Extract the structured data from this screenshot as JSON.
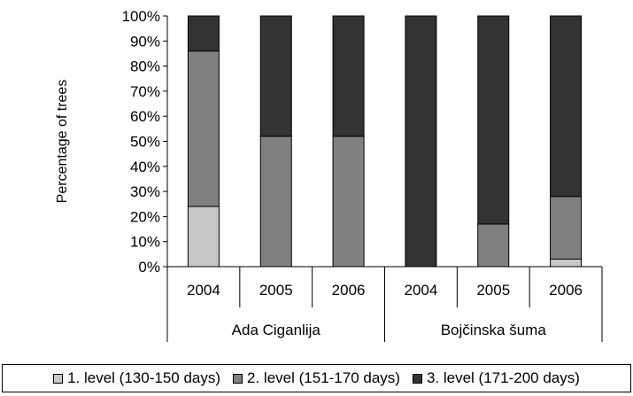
{
  "chart_data": {
    "type": "bar",
    "stacked": true,
    "ylabel": "Percentage of trees",
    "xlabel": "",
    "ylim": [
      0,
      100
    ],
    "y_ticks": [
      "0%",
      "10%",
      "20%",
      "30%",
      "40%",
      "50%",
      "60%",
      "70%",
      "80%",
      "90%",
      "100%"
    ],
    "groups": [
      {
        "label": "Ada Ciganlija",
        "categories": [
          "2004",
          "2005",
          "2006"
        ]
      },
      {
        "label": "Bojčinska šuma",
        "categories": [
          "2004",
          "2005",
          "2006"
        ]
      }
    ],
    "categories": [
      "2004",
      "2005",
      "2006",
      "2004",
      "2005",
      "2006"
    ],
    "series": [
      {
        "name": "1. level (130-150 days)",
        "color": "#c8c8c8",
        "values": [
          24,
          0,
          0,
          0,
          0,
          3
        ]
      },
      {
        "name": "2. level (151-170 days)",
        "color": "#808080",
        "values": [
          62,
          52,
          52,
          0,
          17,
          25
        ]
      },
      {
        "name": "3. level (171-200 days)",
        "color": "#333333",
        "values": [
          14,
          48,
          48,
          100,
          83,
          72
        ]
      }
    ],
    "legend_position": "bottom",
    "grid": false
  }
}
